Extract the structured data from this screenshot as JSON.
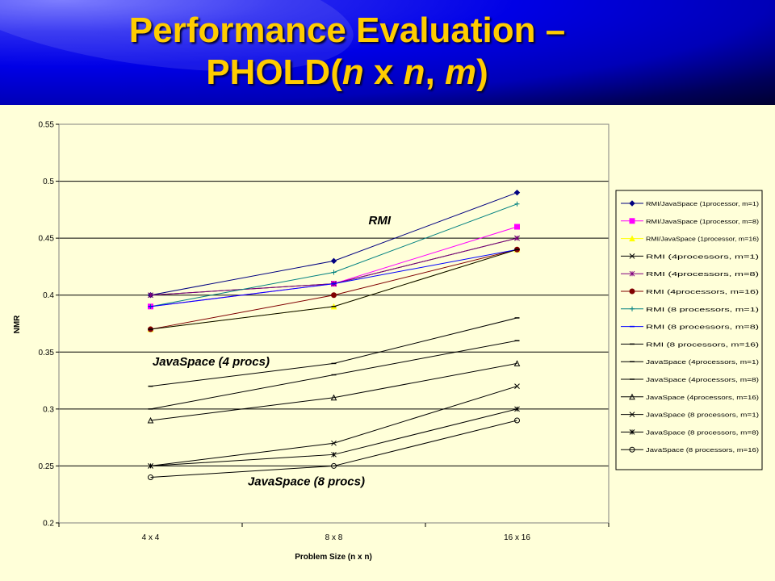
{
  "slide": {
    "title_line1": "Performance Evaluation –",
    "title_line2_prefix": "PHOLD(",
    "title_line2_n1": "n",
    "title_line2_x": " x ",
    "title_line2_n2": "n",
    "title_line2_comma": ", ",
    "title_line2_m": "m",
    "title_line2_suffix": ")",
    "header_color": "#0000E6",
    "title_color": "#FFCC00",
    "background_color": "#FFFFD9"
  },
  "chart_data": {
    "type": "line",
    "xlabel": "Problem Size (n x n)",
    "ylabel": "NMR",
    "categories": [
      "4 x 4",
      "8 x 8",
      "16 x 16"
    ],
    "ylim": [
      0.2,
      0.55
    ],
    "yticks": [
      "0.2",
      "0.25",
      "0.3",
      "0.35",
      "0.4",
      "0.45",
      "0.5",
      "0.55"
    ],
    "grid": true,
    "legend_position": "right",
    "annotations": [
      {
        "text": "RMI",
        "at": [
          1.25,
          0.462
        ]
      },
      {
        "text": "JavaSpace (4 procs)",
        "at": [
          0.33,
          0.338
        ]
      },
      {
        "text": "JavaSpace (8 procs)",
        "at": [
          0.85,
          0.233
        ]
      }
    ],
    "series": [
      {
        "name": "RMI/JavaSpace (1processor, m=1)",
        "values": [
          0.4,
          0.43,
          0.49
        ],
        "color": "#000080",
        "marker": "diamond",
        "fill": "#000080"
      },
      {
        "name": "RMI/JavaSpace (1processor, m=8)",
        "values": [
          0.39,
          0.41,
          0.46
        ],
        "color": "#FF00FF",
        "marker": "square",
        "fill": "#FF00FF"
      },
      {
        "name": "RMI/JavaSpace (1processor, m=16)",
        "values": [
          0.37,
          0.39,
          0.44
        ],
        "color": "#FFFF00",
        "marker": "triangle",
        "fill": "#FFFF00"
      },
      {
        "name": "RMI (4processors, m=1)",
        "values": [
          0.4,
          0.41,
          0.45
        ],
        "color": "#000000",
        "marker": "x",
        "fill": "none"
      },
      {
        "name": "RMI (4processors, m=8)",
        "values": [
          0.4,
          0.41,
          0.45
        ],
        "color": "#800080",
        "marker": "star",
        "fill": "none"
      },
      {
        "name": "RMI (4processors, m=16)",
        "values": [
          0.37,
          0.4,
          0.44
        ],
        "color": "#800000",
        "marker": "circle",
        "fill": "#800000"
      },
      {
        "name": "RMI (8 processors, m=1)",
        "values": [
          0.39,
          0.42,
          0.48
        ],
        "color": "#008080",
        "marker": "plus",
        "fill": "none"
      },
      {
        "name": "RMI (8 processors, m=8)",
        "values": [
          0.39,
          0.41,
          0.44
        ],
        "color": "#0000FF",
        "marker": "dash",
        "fill": "none"
      },
      {
        "name": "RMI (8 processors, m=16)",
        "values": [
          0.37,
          0.39,
          0.44
        ],
        "color": "#000000",
        "marker": "dash",
        "fill": "none"
      },
      {
        "name": "JavaSpace (4processors, m=1)",
        "values": [
          0.32,
          0.34,
          0.38
        ],
        "color": "#000000",
        "marker": "dash",
        "fill": "none"
      },
      {
        "name": "JavaSpace (4processors, m=8)",
        "values": [
          0.3,
          0.33,
          0.36
        ],
        "color": "#000000",
        "marker": "dash",
        "fill": "none"
      },
      {
        "name": "JavaSpace (4processors, m=16)",
        "values": [
          0.29,
          0.31,
          0.34
        ],
        "color": "#000000",
        "marker": "triangle-open",
        "fill": "none"
      },
      {
        "name": "JavaSpace (8 processors, m=1)",
        "values": [
          0.25,
          0.27,
          0.32
        ],
        "color": "#000000",
        "marker": "x",
        "fill": "none"
      },
      {
        "name": "JavaSpace (8 processors, m=8)",
        "values": [
          0.25,
          0.26,
          0.3
        ],
        "color": "#000000",
        "marker": "star",
        "fill": "none"
      },
      {
        "name": "JavaSpace (8 processors, m=16)",
        "values": [
          0.24,
          0.25,
          0.29
        ],
        "color": "#000000",
        "marker": "circle-open",
        "fill": "none"
      }
    ]
  }
}
